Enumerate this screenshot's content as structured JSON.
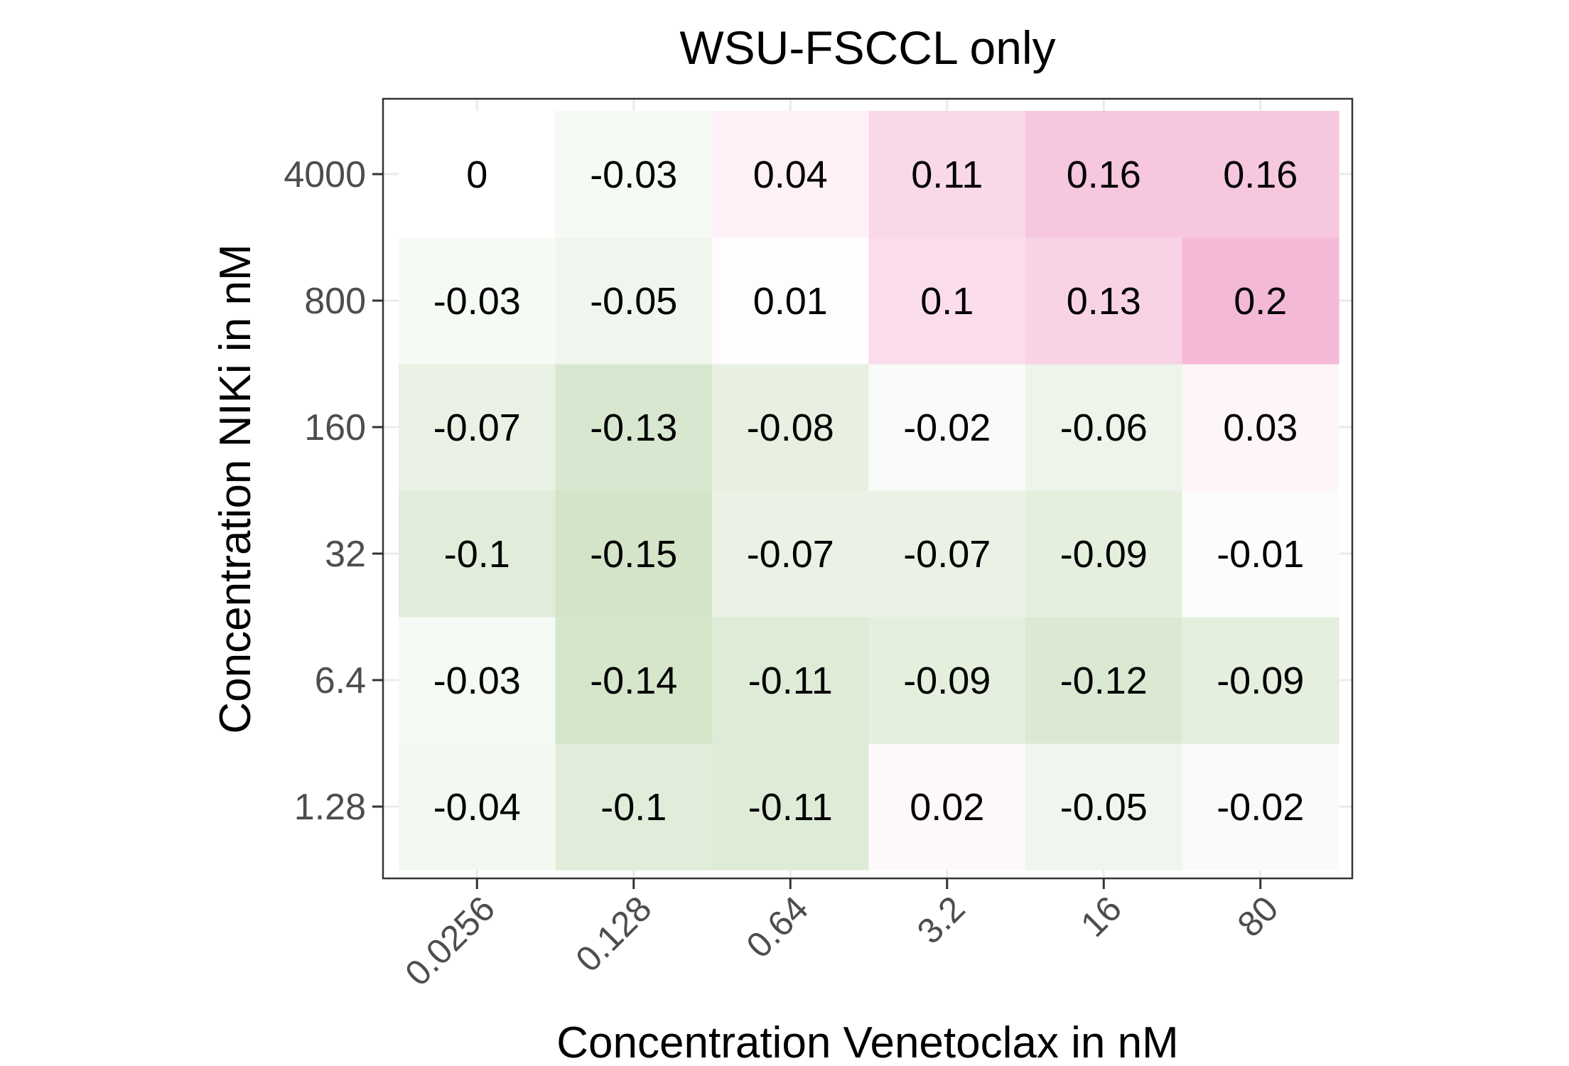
{
  "chart_data": {
    "type": "heatmap",
    "title": "WSU-FSCCL only",
    "xlabel": "Concentration Venetoclax in nM",
    "ylabel": "Concentration NIKi in nM",
    "x_categories": [
      "0.0256",
      "0.128",
      "0.64",
      "3.2",
      "16",
      "80"
    ],
    "y_categories": [
      "1.28",
      "6.4",
      "32",
      "160",
      "800",
      "4000"
    ],
    "values": [
      [
        -0.04,
        -0.1,
        -0.11,
        0.02,
        -0.05,
        -0.02
      ],
      [
        -0.03,
        -0.14,
        -0.11,
        -0.09,
        -0.12,
        -0.09
      ],
      [
        -0.1,
        -0.15,
        -0.07,
        -0.07,
        -0.09,
        -0.01
      ],
      [
        -0.07,
        -0.13,
        -0.08,
        -0.02,
        -0.06,
        0.03
      ],
      [
        -0.03,
        -0.05,
        0.01,
        0.1,
        0.13,
        0.2
      ],
      [
        0,
        -0.03,
        0.04,
        0.11,
        0.16,
        0.16
      ]
    ],
    "value_labels": [
      [
        "-0.04",
        "-0.1",
        "-0.11",
        "0.02",
        "-0.05",
        "-0.02"
      ],
      [
        "-0.03",
        "-0.14",
        "-0.11",
        "-0.09",
        "-0.12",
        "-0.09"
      ],
      [
        "-0.1",
        "-0.15",
        "-0.07",
        "-0.07",
        "-0.09",
        "-0.01"
      ],
      [
        "-0.07",
        "-0.13",
        "-0.08",
        "-0.02",
        "-0.06",
        "0.03"
      ],
      [
        "-0.03",
        "-0.05",
        "0.01",
        "0.1",
        "0.13",
        "0.2"
      ],
      [
        "0",
        "-0.03",
        "0.04",
        "0.11",
        "0.16",
        "0.16"
      ]
    ],
    "colors": {
      "negative": "#4d9221",
      "neutral": "#ffffff",
      "positive": "#de2d86",
      "panel_border": "#333333",
      "grid": "#ebebeb",
      "tick_label": "#4d4d4d",
      "text": "#000000"
    },
    "grid": true,
    "legend": "none"
  }
}
